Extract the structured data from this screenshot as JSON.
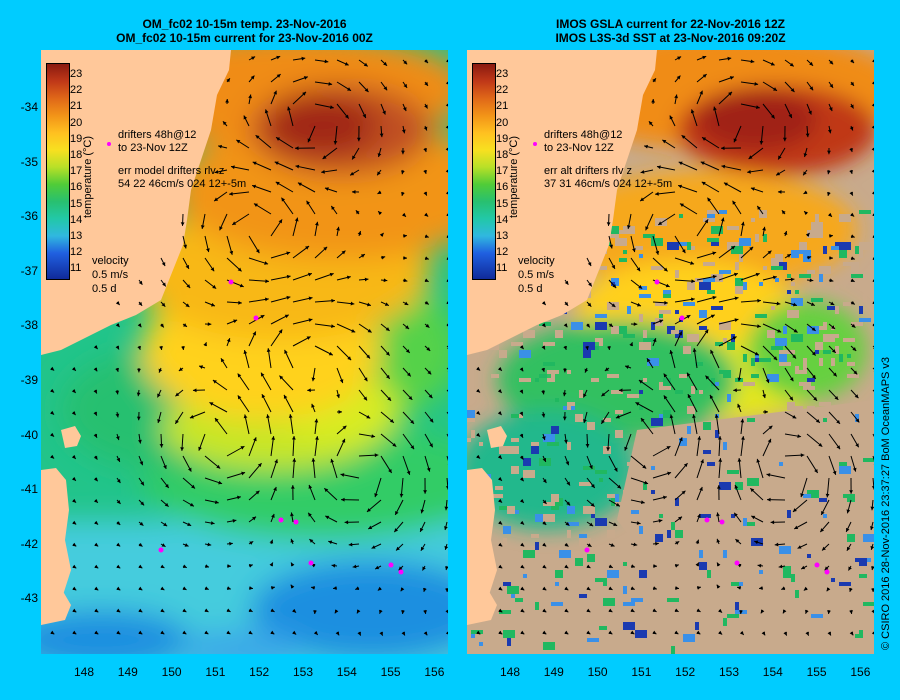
{
  "left_panel": {
    "title_line1": "OM_fc02 10-15m temp. 23-Nov-2016",
    "title_line2": "OM_fc02 10-15m current for 23-Nov-2016 00Z",
    "drifters_line1": "drifters 48h@12",
    "drifters_line2": "to 23-Nov 12Z",
    "err_line1": "err model drifters rlv z",
    "err_line2": "54 22 46cm/s 024 12+-5m",
    "velocity_label": "velocity",
    "velocity_value": "0.5 m/s",
    "velocity_days": "0.5 d"
  },
  "right_panel": {
    "title_line1": "IMOS GSLA current for 22-Nov-2016 12Z",
    "title_line2": "IMOS L3S-3d SST at 23-Nov-2016 09:20Z",
    "drifters_line1": "drifters 48h@12",
    "drifters_line2": "to 23-Nov 12Z",
    "err_line1": "err alt drifters rlv z",
    "err_line2": "37 31 46cm/s 024 12+-5m",
    "velocity_label": "velocity",
    "velocity_value": "0.5 m/s",
    "velocity_days": "0.5 d"
  },
  "colorbar": {
    "label": "temperature (°C)",
    "ticks": [
      "23",
      "22",
      "21",
      "20",
      "19",
      "18",
      "17",
      "16",
      "15",
      "14",
      "13",
      "12",
      "11"
    ]
  },
  "axes": {
    "y_ticks": [
      "-34",
      "-35",
      "-36",
      "-37",
      "-38",
      "-39",
      "-40",
      "-41",
      "-42",
      "-43"
    ],
    "x_ticks": [
      "148",
      "149",
      "150",
      "151",
      "152",
      "153",
      "154",
      "155",
      "156"
    ]
  },
  "credit": "© CSIRO 2016   28-Nov-2016 23:37:27 BoM OceanMAPS v3",
  "colors": {
    "background": "#00ccff",
    "land": "#ffc89a",
    "no_data": "#c8aa8c",
    "drifter": "#ff00ff"
  }
}
